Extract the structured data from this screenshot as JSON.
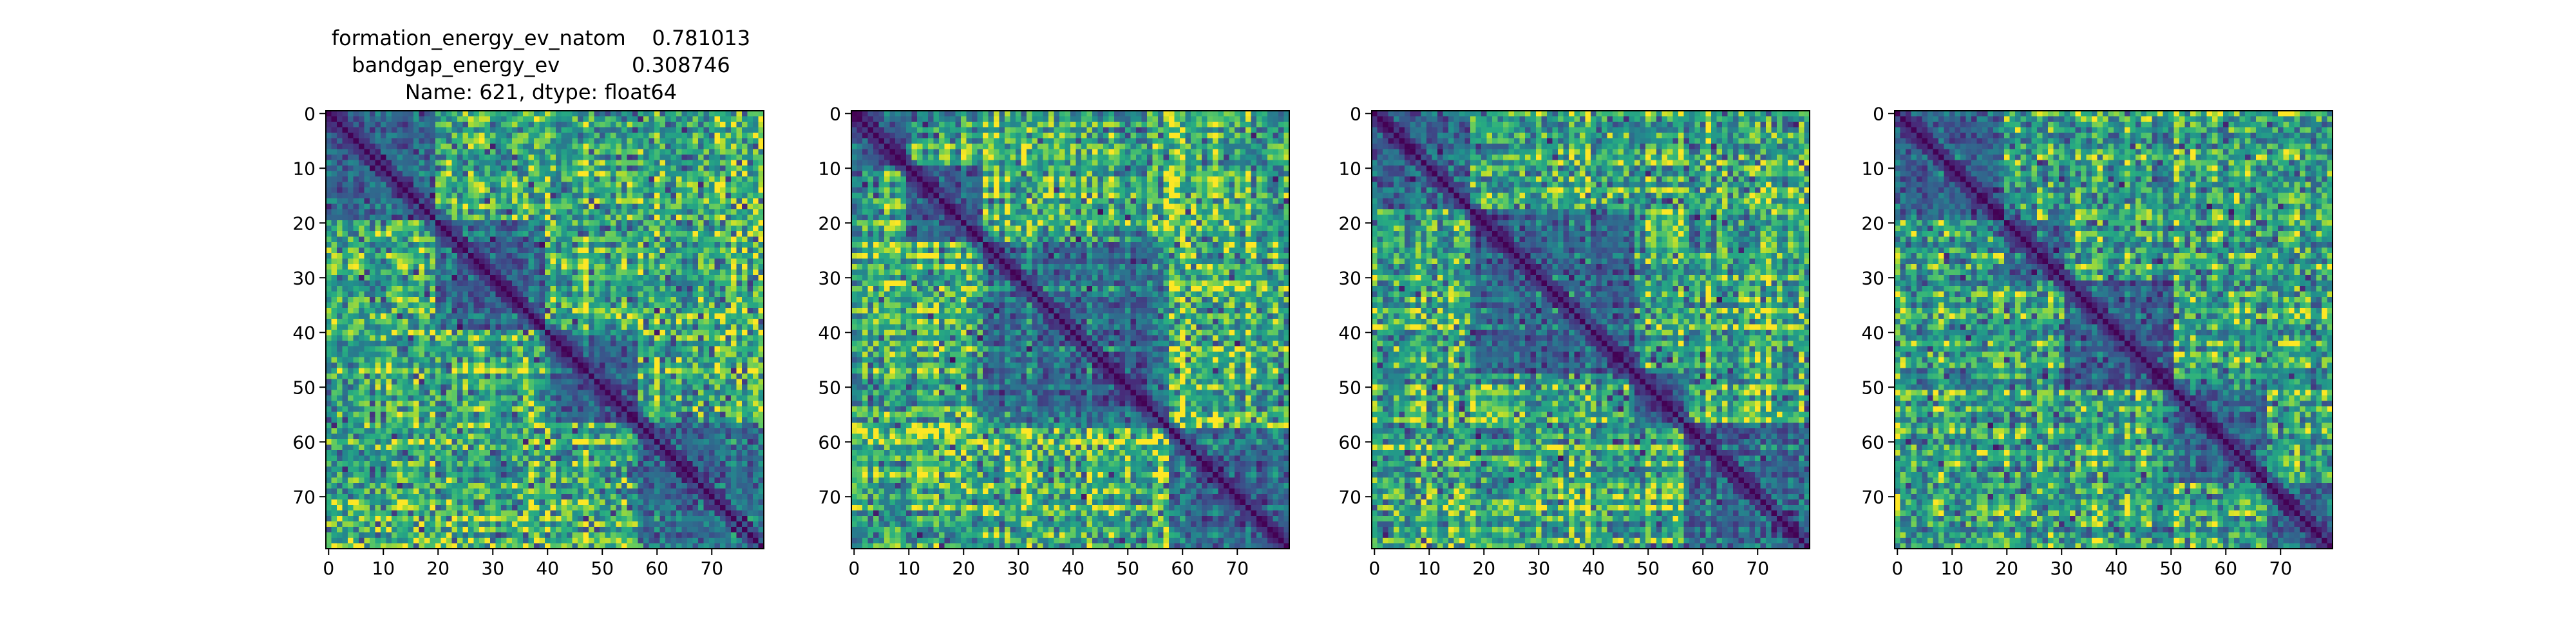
{
  "chart_data": {
    "type": "heatmap",
    "colormap": "viridis",
    "colors": {
      "viridis_low": "#440154",
      "viridis_mid": "#21918c",
      "viridis_high": "#fde725"
    },
    "title_lines": [
      "formation_energy_ev_natom    0.781013",
      "bandgap_energy_ev           0.308746",
      "Name: 621, dtype: float64"
    ],
    "matrix_size": 80,
    "xticks": [
      0,
      10,
      20,
      30,
      40,
      50,
      60,
      70
    ],
    "yticks": [
      0,
      10,
      20,
      30,
      40,
      50,
      60,
      70
    ],
    "panels": [
      {
        "id": "panel-1",
        "diagonal": "zero",
        "block_boundaries": [
          20,
          40,
          57
        ]
      },
      {
        "id": "panel-2",
        "diagonal": "zero",
        "block_boundaries": [
          10,
          24,
          58
        ]
      },
      {
        "id": "panel-3",
        "diagonal": "zero",
        "block_boundaries": [
          18,
          48,
          57
        ]
      },
      {
        "id": "panel-4",
        "diagonal": "zero",
        "block_boundaries": [
          20,
          31,
          51,
          68
        ]
      }
    ]
  }
}
